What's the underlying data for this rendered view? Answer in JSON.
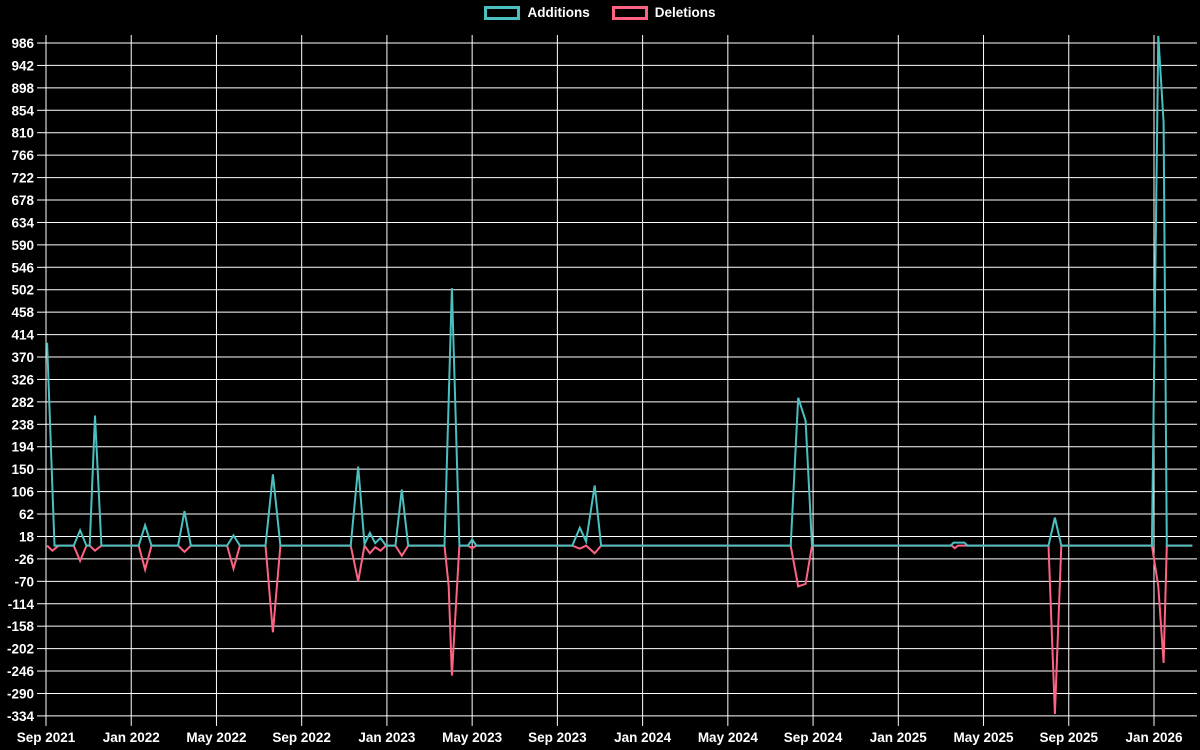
{
  "legend": {
    "items": [
      {
        "label": "Additions",
        "color": "#4BC0C0"
      },
      {
        "label": "Deletions",
        "color": "#FF6384"
      }
    ]
  },
  "chart_data": {
    "type": "line",
    "title": "",
    "legend_position": "top",
    "grid": true,
    "x_axis_tick_labels": [
      "Sep 2021",
      "Jan 2022",
      "May 2022",
      "Sep 2022",
      "Jan 2023",
      "May 2023",
      "Sep 2023",
      "Jan 2024",
      "May 2024",
      "Sep 2024",
      "Jan 2025",
      "May 2025",
      "Sep 2025",
      "Jan 2026"
    ],
    "x_tick_interval_months": 4,
    "y_axis_tick_labels": [
      986,
      942,
      898,
      854,
      810,
      766,
      722,
      678,
      634,
      590,
      546,
      502,
      458,
      414,
      370,
      326,
      282,
      238,
      194,
      150,
      106,
      62,
      18,
      -26,
      -70,
      -114,
      -158,
      -202,
      -246,
      -290,
      -334
    ],
    "y_step": 44,
    "ylim": [
      -348,
      1002
    ],
    "xlim_months": [
      0,
      53.8
    ],
    "x_unit": "months since Sep 2021",
    "colors": {
      "background": "#000000",
      "grid": "#ffffff",
      "text": "#ffffff"
    },
    "series": [
      {
        "name": "Additions",
        "color": "#4BC0C0",
        "points": [
          [
            0.05,
            398
          ],
          [
            0.4,
            0
          ],
          [
            1.3,
            0
          ],
          [
            1.6,
            30
          ],
          [
            1.9,
            0
          ],
          [
            2.05,
            0
          ],
          [
            2.3,
            255
          ],
          [
            2.6,
            0
          ],
          [
            4.35,
            0
          ],
          [
            4.65,
            40
          ],
          [
            4.95,
            0
          ],
          [
            6.2,
            0
          ],
          [
            6.5,
            68
          ],
          [
            6.8,
            0
          ],
          [
            8.5,
            0
          ],
          [
            8.8,
            20
          ],
          [
            9.1,
            0
          ],
          [
            10.3,
            0
          ],
          [
            10.65,
            140
          ],
          [
            11.0,
            0
          ],
          [
            14.3,
            0
          ],
          [
            14.65,
            155
          ],
          [
            14.95,
            3
          ],
          [
            15.2,
            25
          ],
          [
            15.45,
            5
          ],
          [
            15.7,
            15
          ],
          [
            15.95,
            0
          ],
          [
            16.4,
            0
          ],
          [
            16.7,
            110
          ],
          [
            17.0,
            0
          ],
          [
            18.7,
            0
          ],
          [
            19.05,
            505
          ],
          [
            19.4,
            0
          ],
          [
            19.8,
            0
          ],
          [
            20.0,
            12
          ],
          [
            20.2,
            0
          ],
          [
            24.7,
            0
          ],
          [
            25.05,
            35
          ],
          [
            25.35,
            8
          ],
          [
            25.75,
            118
          ],
          [
            26.05,
            0
          ],
          [
            34.95,
            0
          ],
          [
            35.3,
            290
          ],
          [
            35.65,
            245
          ],
          [
            35.95,
            0
          ],
          [
            42.45,
            0
          ],
          [
            42.6,
            6
          ],
          [
            43.1,
            6
          ],
          [
            43.25,
            0
          ],
          [
            47.05,
            0
          ],
          [
            47.35,
            55
          ],
          [
            47.65,
            0
          ],
          [
            51.9,
            0
          ],
          [
            52.2,
            1000
          ],
          [
            52.45,
            830
          ],
          [
            52.6,
            0
          ],
          [
            53.8,
            0
          ]
        ]
      },
      {
        "name": "Deletions",
        "color": "#FF6384",
        "points": [
          [
            0.05,
            0
          ],
          [
            0.3,
            -10
          ],
          [
            0.6,
            0
          ],
          [
            1.3,
            0
          ],
          [
            1.6,
            -30
          ],
          [
            1.9,
            0
          ],
          [
            2.05,
            0
          ],
          [
            2.3,
            -10
          ],
          [
            2.6,
            0
          ],
          [
            4.35,
            0
          ],
          [
            4.65,
            -47
          ],
          [
            4.95,
            0
          ],
          [
            6.2,
            0
          ],
          [
            6.5,
            -12
          ],
          [
            6.8,
            0
          ],
          [
            8.5,
            0
          ],
          [
            8.8,
            -45
          ],
          [
            9.1,
            0
          ],
          [
            10.3,
            0
          ],
          [
            10.65,
            -170
          ],
          [
            11.0,
            0
          ],
          [
            14.3,
            0
          ],
          [
            14.65,
            -70
          ],
          [
            14.95,
            0
          ],
          [
            15.2,
            -15
          ],
          [
            15.45,
            -3
          ],
          [
            15.7,
            -10
          ],
          [
            15.95,
            0
          ],
          [
            16.4,
            0
          ],
          [
            16.7,
            -20
          ],
          [
            17.0,
            0
          ],
          [
            18.7,
            0
          ],
          [
            18.9,
            -80
          ],
          [
            19.05,
            -255
          ],
          [
            19.4,
            0
          ],
          [
            19.8,
            0
          ],
          [
            20.0,
            -5
          ],
          [
            20.2,
            0
          ],
          [
            24.7,
            0
          ],
          [
            25.05,
            -6
          ],
          [
            25.35,
            0
          ],
          [
            25.75,
            -15
          ],
          [
            26.05,
            0
          ],
          [
            34.95,
            0
          ],
          [
            35.3,
            -80
          ],
          [
            35.65,
            -75
          ],
          [
            35.95,
            0
          ],
          [
            42.5,
            0
          ],
          [
            42.65,
            -5
          ],
          [
            42.8,
            0
          ],
          [
            47.05,
            0
          ],
          [
            47.35,
            -330
          ],
          [
            47.65,
            0
          ],
          [
            51.9,
            0
          ],
          [
            52.2,
            -80
          ],
          [
            52.45,
            -230
          ],
          [
            52.6,
            0
          ],
          [
            53.8,
            0
          ]
        ]
      }
    ]
  }
}
